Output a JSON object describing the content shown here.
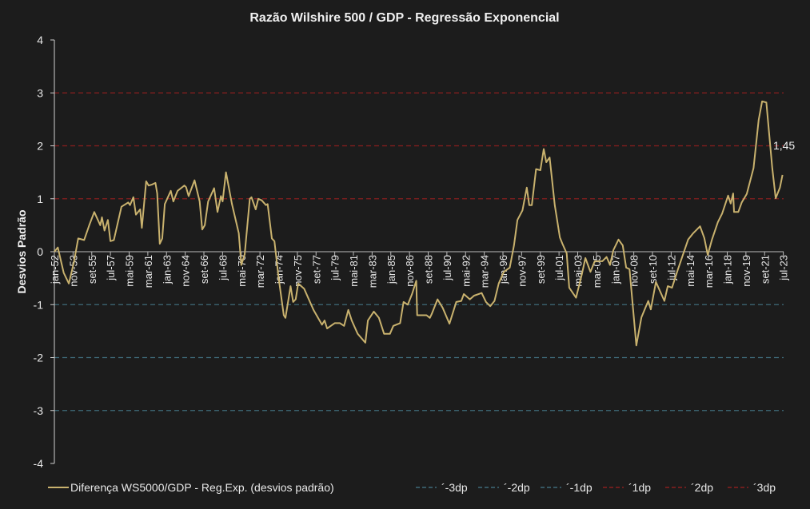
{
  "chart_data": {
    "type": "line",
    "title": "Razão Wilshire 500 / GDP - Regressão Exponencial",
    "xlabel": "",
    "ylabel": "Desvios Padrão",
    "ylim": [
      -4,
      4
    ],
    "yticks": [
      -4,
      -3,
      -2,
      -1,
      0,
      1,
      2,
      3,
      4
    ],
    "grid": false,
    "legend_position": "bottom",
    "colors": {
      "series": "#c9b26e",
      "negative_bands": "#3f6b7a",
      "positive_bands": "#8a1e1e",
      "background": "#1c1c1c",
      "axis": "#cfcfcf"
    },
    "xtick_labels": [
      "jan-52",
      "nov-53",
      "set-55",
      "jul-57",
      "mai-59",
      "mar-61",
      "jan-63",
      "nov-64",
      "set-66",
      "jul-68",
      "mai-70",
      "mar-72",
      "jan-74",
      "nov-75",
      "set-77",
      "jul-79",
      "mai-81",
      "mar-83",
      "jan-85",
      "nov-86",
      "set-88",
      "jul-90",
      "mai-92",
      "mar-94",
      "jan-96",
      "nov-97",
      "set-99",
      "jul-01",
      "mai-03",
      "mar-05",
      "jan-07",
      "nov-08",
      "set-10",
      "jul-12",
      "mai-14",
      "mar-16",
      "jan-18",
      "nov-19",
      "set-21",
      "jul-23"
    ],
    "series": [
      {
        "name": "Diferença WS5000/GDP - Reg.Exp. (desvios padrão)",
        "style": "solid",
        "points": [
          [
            "1952-01",
            0.0
          ],
          [
            "1952-05",
            0.08
          ],
          [
            "1952-12",
            -0.4
          ],
          [
            "1953-06",
            -0.6
          ],
          [
            "1953-12",
            -0.2
          ],
          [
            "1954-05",
            0.25
          ],
          [
            "1954-12",
            0.22
          ],
          [
            "1955-06",
            0.5
          ],
          [
            "1955-12",
            0.75
          ],
          [
            "1956-07",
            0.5
          ],
          [
            "1956-09",
            0.65
          ],
          [
            "1956-12",
            0.4
          ],
          [
            "1957-04",
            0.6
          ],
          [
            "1957-07",
            0.2
          ],
          [
            "1957-11",
            0.22
          ],
          [
            "1958-08",
            0.85
          ],
          [
            "1959-04",
            0.93
          ],
          [
            "1959-06",
            0.88
          ],
          [
            "1959-10",
            1.03
          ],
          [
            "1960-01",
            0.7
          ],
          [
            "1960-06",
            0.8
          ],
          [
            "1960-08",
            0.45
          ],
          [
            "1961-01",
            1.33
          ],
          [
            "1961-04",
            1.25
          ],
          [
            "1961-08",
            1.27
          ],
          [
            "1961-12",
            1.3
          ],
          [
            "1962-02",
            1.1
          ],
          [
            "1962-05",
            0.15
          ],
          [
            "1962-08",
            0.25
          ],
          [
            "1962-11",
            0.9
          ],
          [
            "1963-06",
            1.15
          ],
          [
            "1963-09",
            0.95
          ],
          [
            "1964-02",
            1.15
          ],
          [
            "1964-10",
            1.25
          ],
          [
            "1964-12",
            1.22
          ],
          [
            "1965-03",
            1.05
          ],
          [
            "1965-10",
            1.35
          ],
          [
            "1966-04",
            0.95
          ],
          [
            "1966-07",
            0.42
          ],
          [
            "1966-10",
            0.5
          ],
          [
            "1967-02",
            0.95
          ],
          [
            "1967-09",
            1.2
          ],
          [
            "1968-01",
            0.75
          ],
          [
            "1968-05",
            1.05
          ],
          [
            "1968-07",
            0.95
          ],
          [
            "1968-11",
            1.5
          ],
          [
            "1969-06",
            0.9
          ],
          [
            "1970-02",
            0.35
          ],
          [
            "1970-05",
            -0.25
          ],
          [
            "1970-09",
            -0.05
          ],
          [
            "1971-03",
            1.0
          ],
          [
            "1971-05",
            1.03
          ],
          [
            "1971-10",
            0.8
          ],
          [
            "1972-01",
            1.0
          ],
          [
            "1972-05",
            0.97
          ],
          [
            "1972-10",
            0.88
          ],
          [
            "1972-12",
            0.9
          ],
          [
            "1973-05",
            0.25
          ],
          [
            "1973-08",
            0.2
          ],
          [
            "1974-01",
            -0.5
          ],
          [
            "1974-07",
            -1.2
          ],
          [
            "1974-09",
            -1.25
          ],
          [
            "1975-03",
            -0.65
          ],
          [
            "1975-06",
            -0.95
          ],
          [
            "1975-09",
            -0.9
          ],
          [
            "1975-12",
            -0.6
          ],
          [
            "1976-07",
            -0.7
          ],
          [
            "1977-06",
            -1.1
          ],
          [
            "1978-04",
            -1.38
          ],
          [
            "1978-07",
            -1.3
          ],
          [
            "1978-10",
            -1.45
          ],
          [
            "1979-07",
            -1.35
          ],
          [
            "1980-01",
            -1.35
          ],
          [
            "1980-06",
            -1.4
          ],
          [
            "1980-11",
            -1.1
          ],
          [
            "1981-03",
            -1.3
          ],
          [
            "1981-10",
            -1.55
          ],
          [
            "1982-07",
            -1.72
          ],
          [
            "1982-10",
            -1.3
          ],
          [
            "1983-05",
            -1.13
          ],
          [
            "1983-11",
            -1.25
          ],
          [
            "1984-05",
            -1.55
          ],
          [
            "1984-12",
            -1.55
          ],
          [
            "1985-04",
            -1.4
          ],
          [
            "1985-12",
            -1.35
          ],
          [
            "1986-04",
            -0.95
          ],
          [
            "1986-09",
            -1.0
          ],
          [
            "1987-02",
            -0.8
          ],
          [
            "1987-07",
            -0.55
          ],
          [
            "1987-08",
            -1.2
          ],
          [
            "1988-07",
            -1.2
          ],
          [
            "1988-11",
            -1.25
          ],
          [
            "1989-01",
            -1.18
          ],
          [
            "1989-08",
            -0.9
          ],
          [
            "1990-02",
            -1.06
          ],
          [
            "1990-10",
            -1.36
          ],
          [
            "1991-06",
            -0.95
          ],
          [
            "1991-12",
            -0.93
          ],
          [
            "1992-03",
            -0.8
          ],
          [
            "1992-10",
            -0.9
          ],
          [
            "1993-03",
            -0.83
          ],
          [
            "1993-12",
            -0.78
          ],
          [
            "1994-05",
            -0.95
          ],
          [
            "1994-10",
            -1.03
          ],
          [
            "1995-03",
            -0.93
          ],
          [
            "1995-08",
            -0.6
          ],
          [
            "1996-02",
            -0.38
          ],
          [
            "1996-09",
            -0.3
          ],
          [
            "1997-02",
            0.12
          ],
          [
            "1997-06",
            0.6
          ],
          [
            "1997-12",
            0.78
          ],
          [
            "1998-05",
            1.21
          ],
          [
            "1998-08",
            0.88
          ],
          [
            "1998-11",
            0.88
          ],
          [
            "1999-04",
            1.56
          ],
          [
            "1999-09",
            1.54
          ],
          [
            "2000-01",
            1.94
          ],
          [
            "2000-04",
            1.69
          ],
          [
            "2000-08",
            1.78
          ],
          [
            "2001-02",
            0.88
          ],
          [
            "2001-08",
            0.27
          ],
          [
            "2001-11",
            0.15
          ],
          [
            "2002-04",
            -0.03
          ],
          [
            "2002-07",
            -0.68
          ],
          [
            "2003-03",
            -0.87
          ],
          [
            "2003-10",
            -0.42
          ],
          [
            "2004-02",
            -0.12
          ],
          [
            "2004-08",
            -0.38
          ],
          [
            "2005-01",
            -0.18
          ],
          [
            "2005-10",
            -0.18
          ],
          [
            "2006-03",
            -0.1
          ],
          [
            "2006-07",
            -0.25
          ],
          [
            "2006-11",
            0.03
          ],
          [
            "2007-05",
            0.23
          ],
          [
            "2007-10",
            0.12
          ],
          [
            "2008-02",
            -0.3
          ],
          [
            "2008-06",
            -0.33
          ],
          [
            "2009-02",
            -1.77
          ],
          [
            "2009-08",
            -1.24
          ],
          [
            "2010-04",
            -0.93
          ],
          [
            "2010-07",
            -1.09
          ],
          [
            "2011-01",
            -0.57
          ],
          [
            "2011-11",
            -0.93
          ],
          [
            "2012-03",
            -0.65
          ],
          [
            "2012-08",
            -0.68
          ],
          [
            "2013-03",
            -0.33
          ],
          [
            "2014-03",
            0.23
          ],
          [
            "2014-09",
            0.35
          ],
          [
            "2015-05",
            0.48
          ],
          [
            "2015-10",
            0.26
          ],
          [
            "2016-02",
            -0.06
          ],
          [
            "2016-07",
            0.23
          ],
          [
            "2017-02",
            0.56
          ],
          [
            "2017-07",
            0.72
          ],
          [
            "2018-02",
            1.06
          ],
          [
            "2018-05",
            0.91
          ],
          [
            "2018-08",
            1.1
          ],
          [
            "2018-09",
            0.75
          ],
          [
            "2019-02",
            0.75
          ],
          [
            "2019-06",
            0.93
          ],
          [
            "2019-12",
            1.09
          ],
          [
            "2020-08",
            1.58
          ],
          [
            "2021-02",
            2.49
          ],
          [
            "2021-06",
            2.84
          ],
          [
            "2021-11",
            2.82
          ],
          [
            "2022-06",
            1.58
          ],
          [
            "2022-10",
            1.01
          ],
          [
            "2023-03",
            1.21
          ],
          [
            "2023-06",
            1.45
          ]
        ]
      },
      {
        "name": "´-3dp",
        "style": "dashed",
        "value": -3
      },
      {
        "name": "´-2dp",
        "style": "dashed",
        "value": -2
      },
      {
        "name": "´-1dp",
        "style": "dashed",
        "value": -1
      },
      {
        "name": "´1dp",
        "style": "dashed",
        "value": 1
      },
      {
        "name": "´2dp",
        "style": "dashed",
        "value": 2
      },
      {
        "name": "´3dp",
        "style": "dashed",
        "value": 3
      }
    ],
    "annotations": [
      {
        "label": "1,45",
        "date": "2023-06",
        "value": 1.45
      }
    ]
  }
}
